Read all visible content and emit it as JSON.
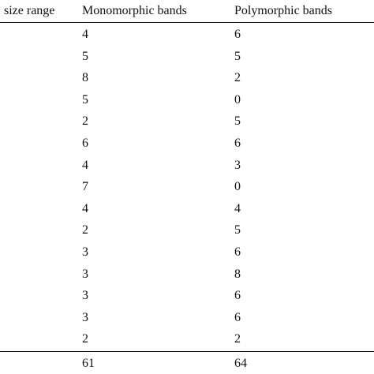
{
  "table": {
    "header": [
      "size range",
      "Monomorphic bands",
      "Polymorphic bands"
    ],
    "rows": [
      [
        4,
        6
      ],
      [
        5,
        5
      ],
      [
        8,
        2
      ],
      [
        5,
        0
      ],
      [
        2,
        5
      ],
      [
        6,
        6
      ],
      [
        4,
        3
      ],
      [
        7,
        0
      ],
      [
        4,
        4
      ],
      [
        2,
        5
      ],
      [
        3,
        6
      ],
      [
        3,
        8
      ],
      [
        3,
        6
      ],
      [
        3,
        6
      ],
      [
        2,
        2
      ]
    ],
    "total": [
      61,
      64
    ]
  }
}
